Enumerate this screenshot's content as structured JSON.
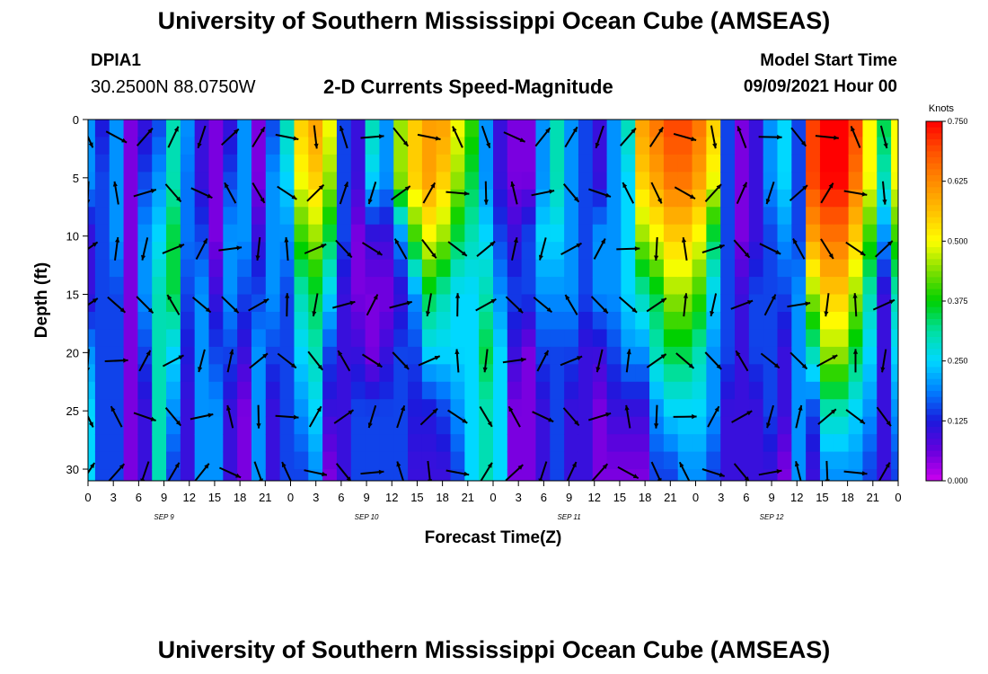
{
  "header": {
    "title": "University of Southern Mississippi Ocean Cube (AMSEAS)",
    "station_id": "DPIA1",
    "coords": "30.2500N  88.0750W",
    "plot_title": "2-D Currents Speed-Magnitude",
    "start_label": "Model Start Time",
    "start_value": "09/09/2021 Hour 00"
  },
  "footer": {
    "title": "University of Southern Mississippi Ocean Cube (AMSEAS)"
  },
  "colors": {
    "scale": [
      "#cc00ee",
      "#6600dd",
      "#1a1adc",
      "#0080ff",
      "#00d8ff",
      "#00e0a0",
      "#00d000",
      "#80e000",
      "#ffff00",
      "#ffc000",
      "#ff8a00",
      "#ff5000",
      "#ff0000"
    ]
  },
  "chart_data": {
    "type": "heatmap",
    "title": "2-D Currents Speed-Magnitude",
    "xlabel": "Forecast Time(Z)",
    "ylabel": "Depth (ft)",
    "x_unit": "hours",
    "x_range": [
      0,
      96
    ],
    "y_range": [
      0,
      31
    ],
    "x_ticks": [
      "0",
      "3",
      "6",
      "9",
      "12",
      "15",
      "18",
      "21",
      "0",
      "3",
      "6",
      "9",
      "12",
      "15",
      "18",
      "21",
      "0",
      "3",
      "6",
      "9",
      "12",
      "15",
      "18",
      "21",
      "0",
      "3",
      "6",
      "9",
      "12",
      "15",
      "18",
      "21",
      "0"
    ],
    "y_ticks": [
      "0",
      "5",
      "10",
      "15",
      "20",
      "25",
      "30"
    ],
    "y_tick_values": [
      0,
      5,
      10,
      15,
      20,
      25,
      30
    ],
    "day_labels": [
      "SEP 9",
      "SEP 10",
      "SEP 11",
      "SEP 12"
    ],
    "colorbar": {
      "unit": "Knots",
      "range": [
        0,
        0.75
      ],
      "labels": [
        "0.750",
        "0.625",
        "0.500",
        "0.375",
        "0.250",
        "0.125",
        "0.000"
      ],
      "label_values": [
        0.75,
        0.625,
        0.5,
        0.375,
        0.25,
        0.125,
        0
      ]
    },
    "depth_levels": [
      0,
      5,
      10,
      15,
      20,
      25,
      30
    ],
    "speed_knots": [
      [
        0.2,
        0.2,
        0.1,
        0.1,
        0.2,
        0.25,
        0.25
      ],
      [
        0.12,
        0.15,
        0.15,
        0.15,
        0.15,
        0.15,
        0.15
      ],
      [
        0.2,
        0.2,
        0.2,
        0.15,
        0.15,
        0.15,
        0.15
      ],
      [
        0.05,
        0.05,
        0.05,
        0.05,
        0.05,
        0.05,
        0.05
      ],
      [
        0.1,
        0.15,
        0.2,
        0.2,
        0.15,
        0.1,
        0.1
      ],
      [
        0.15,
        0.2,
        0.25,
        0.3,
        0.3,
        0.3,
        0.3
      ],
      [
        0.3,
        0.3,
        0.35,
        0.35,
        0.25,
        0.2,
        0.15
      ],
      [
        0.2,
        0.18,
        0.18,
        0.15,
        0.12,
        0.1,
        0.1
      ],
      [
        0.1,
        0.1,
        0.15,
        0.2,
        0.2,
        0.2,
        0.2
      ],
      [
        0.05,
        0.05,
        0.05,
        0.1,
        0.15,
        0.2,
        0.2
      ],
      [
        0.1,
        0.15,
        0.2,
        0.2,
        0.15,
        0.1,
        0.1
      ],
      [
        0.2,
        0.2,
        0.2,
        0.15,
        0.1,
        0.05,
        0.05
      ],
      [
        0.05,
        0.05,
        0.1,
        0.15,
        0.2,
        0.2,
        0.2
      ],
      [
        0.15,
        0.2,
        0.2,
        0.2,
        0.15,
        0.1,
        0.1
      ],
      [
        0.3,
        0.25,
        0.2,
        0.15,
        0.15,
        0.15,
        0.15
      ],
      [
        0.55,
        0.5,
        0.4,
        0.3,
        0.25,
        0.2,
        0.15
      ],
      [
        0.6,
        0.55,
        0.45,
        0.35,
        0.3,
        0.25,
        0.2
      ],
      [
        0.5,
        0.45,
        0.35,
        0.25,
        0.15,
        0.1,
        0.05
      ],
      [
        0.15,
        0.15,
        0.15,
        0.1,
        0.1,
        0.1,
        0.1
      ],
      [
        0.1,
        0.1,
        0.05,
        0.05,
        0.1,
        0.15,
        0.15
      ],
      [
        0.3,
        0.25,
        0.1,
        0.05,
        0.05,
        0.15,
        0.15
      ],
      [
        0.2,
        0.2,
        0.1,
        0.05,
        0.1,
        0.15,
        0.15
      ],
      [
        0.45,
        0.45,
        0.2,
        0.1,
        0.15,
        0.15,
        0.15
      ],
      [
        0.55,
        0.55,
        0.4,
        0.2,
        0.15,
        0.12,
        0.1
      ],
      [
        0.6,
        0.6,
        0.5,
        0.35,
        0.25,
        0.12,
        0.1
      ],
      [
        0.6,
        0.55,
        0.45,
        0.3,
        0.25,
        0.15,
        0.1
      ],
      [
        0.5,
        0.45,
        0.35,
        0.25,
        0.25,
        0.2,
        0.15
      ],
      [
        0.4,
        0.35,
        0.3,
        0.25,
        0.25,
        0.25,
        0.25
      ],
      [
        0.2,
        0.2,
        0.25,
        0.3,
        0.35,
        0.3,
        0.3
      ],
      [
        0.1,
        0.1,
        0.15,
        0.2,
        0.25,
        0.25,
        0.25
      ],
      [
        0.05,
        0.05,
        0.1,
        0.15,
        0.1,
        0.05,
        0.05
      ],
      [
        0.05,
        0.05,
        0.15,
        0.15,
        0.05,
        0.05,
        0.05
      ],
      [
        0.2,
        0.2,
        0.25,
        0.2,
        0.15,
        0.1,
        0.1
      ],
      [
        0.3,
        0.3,
        0.25,
        0.2,
        0.15,
        0.15,
        0.15
      ],
      [
        0.2,
        0.2,
        0.2,
        0.2,
        0.15,
        0.1,
        0.1
      ],
      [
        0.15,
        0.15,
        0.15,
        0.15,
        0.1,
        0.1,
        0.1
      ],
      [
        0.1,
        0.1,
        0.2,
        0.2,
        0.1,
        0.05,
        0.05
      ],
      [
        0.2,
        0.2,
        0.2,
        0.2,
        0.15,
        0.1,
        0.05
      ],
      [
        0.3,
        0.25,
        0.25,
        0.25,
        0.2,
        0.1,
        0.05
      ],
      [
        0.6,
        0.55,
        0.45,
        0.3,
        0.2,
        0.1,
        0.05
      ],
      [
        0.65,
        0.6,
        0.5,
        0.35,
        0.3,
        0.2,
        0.15
      ],
      [
        0.7,
        0.65,
        0.55,
        0.45,
        0.35,
        0.25,
        0.15
      ],
      [
        0.7,
        0.65,
        0.55,
        0.45,
        0.35,
        0.25,
        0.2
      ],
      [
        0.65,
        0.6,
        0.5,
        0.4,
        0.3,
        0.25,
        0.2
      ],
      [
        0.55,
        0.5,
        0.35,
        0.25,
        0.2,
        0.2,
        0.15
      ],
      [
        0.15,
        0.15,
        0.15,
        0.15,
        0.15,
        0.1,
        0.1
      ],
      [
        0.05,
        0.05,
        0.05,
        0.1,
        0.1,
        0.1,
        0.1
      ],
      [
        0.1,
        0.1,
        0.1,
        0.15,
        0.15,
        0.1,
        0.1
      ],
      [
        0.2,
        0.2,
        0.15,
        0.15,
        0.15,
        0.15,
        0.1
      ],
      [
        0.25,
        0.25,
        0.2,
        0.15,
        0.1,
        0.1,
        0.05
      ],
      [
        0.15,
        0.15,
        0.15,
        0.2,
        0.2,
        0.2,
        0.2
      ],
      [
        0.7,
        0.7,
        0.6,
        0.45,
        0.3,
        0.15,
        0.1
      ],
      [
        0.75,
        0.75,
        0.65,
        0.55,
        0.45,
        0.3,
        0.2
      ],
      [
        0.75,
        0.75,
        0.65,
        0.55,
        0.45,
        0.3,
        0.2
      ],
      [
        0.7,
        0.65,
        0.55,
        0.45,
        0.35,
        0.25,
        0.2
      ],
      [
        0.5,
        0.5,
        0.4,
        0.3,
        0.25,
        0.2,
        0.15
      ],
      [
        0.35,
        0.3,
        0.2,
        0.1,
        0.1,
        0.1,
        0.1
      ],
      [
        0.5,
        0.5,
        0.4,
        0.3,
        0.25,
        0.2,
        0.15
      ]
    ]
  }
}
